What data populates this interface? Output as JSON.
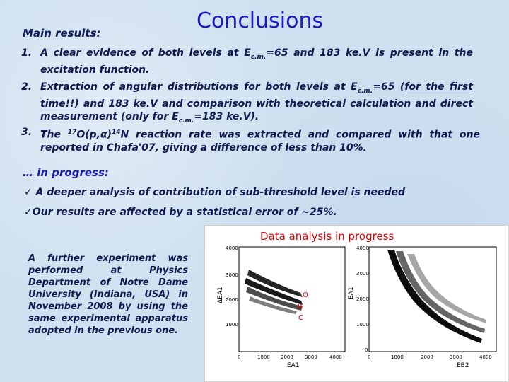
{
  "header": {
    "title": "Conclusions",
    "main_results_label": "Main results:"
  },
  "results": [
    {
      "number": "1.",
      "text": "A clear evidence of both levels at E",
      "sub": "c.m.",
      "text_after": "=65 and 183 ke.V is present in the excitation function."
    },
    {
      "number": "2.",
      "text": "Extraction of angular distributions for both levels at E",
      "sub": "c.m.",
      "text_mid": "=65 (",
      "underlined": "for the first time!!",
      "text_mid2": ") and 183 ke.V and comparison with theoretical calculation and direct measurement (only for E",
      "sub2": "c.m.",
      "text_after": "=183 ke.V)."
    },
    {
      "number": "3.",
      "text_pre": "The ",
      "sup1": "17",
      "text_a": "O(p,α)",
      "sup2": "14",
      "text_b": "N reaction rate was extracted and compared with that one reported in Chafa'07, giving a difference of less than 10%."
    }
  ],
  "progress": {
    "label": "… in progress:",
    "items": [
      {
        "mark": "✓",
        "text": " A deeper analysis of contribution of sub-threshold level is needed"
      },
      {
        "mark": "✓",
        "text": "Our results are affected by a statistical error of ~25%."
      }
    ]
  },
  "experiment_note": "A further experiment was performed at Physics Department of Notre Dame University (Indiana, USA) in November 2008 by using the same experimental apparatus adopted in the previous one.",
  "figure": {
    "caption": "Data analysis in progress",
    "left_plot": {
      "xlabel": "EA1",
      "ylabel": "ΔEA1",
      "xticks": [
        "0",
        "1000",
        "2000",
        "3000",
        "4000"
      ],
      "yticks": [
        "1000",
        "2000",
        "3000",
        "4000"
      ],
      "labels": [
        "O",
        "N",
        "C"
      ]
    },
    "right_plot": {
      "xlabel": "EB2",
      "ylabel": "EA1",
      "xticks": [
        "0",
        "1000",
        "2000",
        "3000",
        "4000"
      ],
      "yticks": [
        "0",
        "1000",
        "2000",
        "3000",
        "4000"
      ]
    },
    "colors": {
      "caption": "#e00000",
      "label": "#e00000",
      "points": "#000000"
    }
  }
}
